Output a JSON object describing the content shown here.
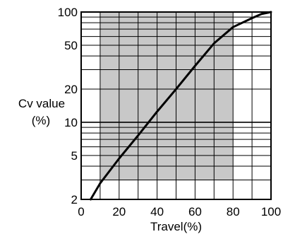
{
  "chart_data": {
    "type": "line",
    "x_scale": "linear",
    "y_scale": "log",
    "xlim": [
      0,
      100
    ],
    "ylim": [
      2,
      100
    ],
    "x_ticks": [
      "0",
      "20",
      "40",
      "60",
      "80",
      "100"
    ],
    "y_ticks": [
      "2",
      "5",
      "10",
      "20",
      "50",
      "100"
    ],
    "xlabel": "Travel(%)",
    "ylabel": [
      "Cv value",
      "(%)"
    ],
    "grid": true,
    "shaded_region": {
      "x": [
        10,
        80
      ],
      "y": [
        3,
        100
      ]
    },
    "series": [
      {
        "x": [
          5,
          10,
          20,
          30,
          40,
          50,
          60,
          70,
          80,
          90,
          95,
          100
        ],
        "y": [
          2,
          2.8,
          4.7,
          7.6,
          12.5,
          20,
          32.5,
          52,
          73,
          88,
          96,
          100
        ]
      }
    ],
    "colors": {
      "line": "#000000",
      "grid": "#000000",
      "shade": "#c8c8c8"
    }
  }
}
